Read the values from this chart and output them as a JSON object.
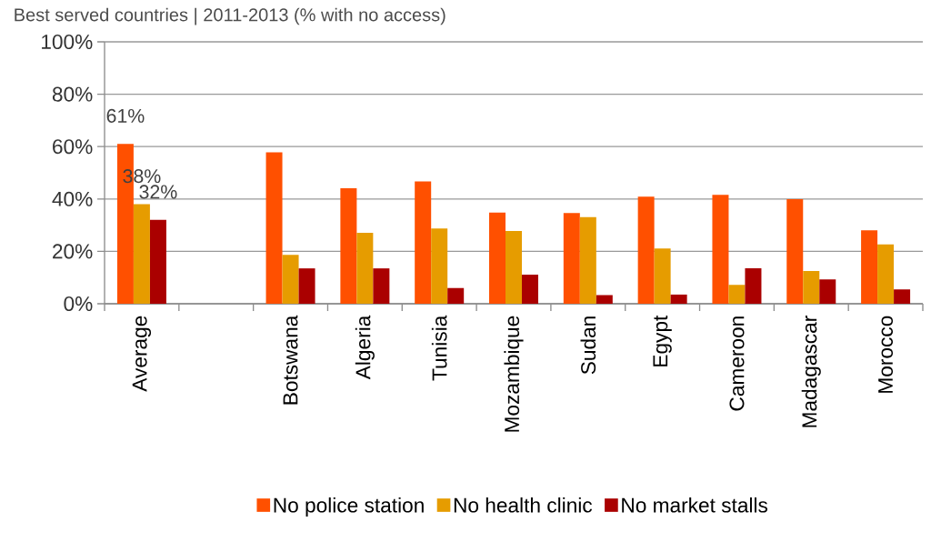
{
  "chart_data": {
    "type": "bar",
    "title": "Best served countries | 2011-2013 (% with no access)",
    "categories": [
      "Average",
      null,
      "Botswana",
      "Algeria",
      "Tunisia",
      "Mozambique",
      "Sudan",
      "Egypt",
      "Cameroon",
      "Madagascar",
      "Morocco"
    ],
    "series": [
      {
        "name": "No police station",
        "color": "#ff5000",
        "values": [
          61,
          null,
          57.8,
          44.1,
          46.7,
          34.8,
          34.6,
          40.9,
          41.6,
          39.9,
          28.0
        ],
        "value_labels": [
          "61%",
          null,
          null,
          null,
          null,
          null,
          null,
          null,
          null,
          null,
          null
        ]
      },
      {
        "name": "No health clinic",
        "color": "#e69c00",
        "values": [
          38,
          null,
          18.7,
          27.1,
          28.7,
          27.8,
          33.1,
          21.1,
          7.2,
          12.5,
          22.7
        ],
        "value_labels": [
          "38%",
          null,
          null,
          null,
          null,
          null,
          null,
          null,
          null,
          null,
          null
        ]
      },
      {
        "name": "No market stalls",
        "color": "#aa0000",
        "values": [
          32.0,
          null,
          13.5,
          13.5,
          6.0,
          11.1,
          3.3,
          3.5,
          13.5,
          9.3,
          5.5
        ],
        "value_labels": [
          "32%",
          null,
          null,
          null,
          null,
          null,
          null,
          null,
          null,
          null,
          null
        ]
      }
    ],
    "ylim": [
      0,
      100
    ],
    "yticks": [
      {
        "value": 0,
        "label": "0%"
      },
      {
        "value": 20,
        "label": "20%"
      },
      {
        "value": 40,
        "label": "40%"
      },
      {
        "value": 60,
        "label": "60%"
      },
      {
        "value": 80,
        "label": "80%"
      },
      {
        "value": 100,
        "label": "100%"
      }
    ],
    "grid": "y",
    "legend": "bottom"
  }
}
